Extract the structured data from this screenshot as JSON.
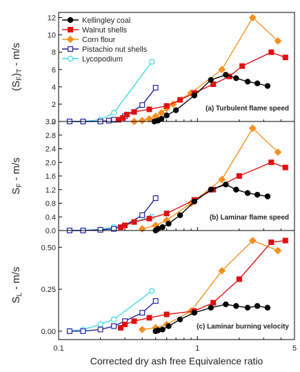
{
  "xlabel": "Corrected dry ash free Equivalence ratio",
  "x_ticks": [
    {
      "value": 0.1,
      "label": "0.1"
    },
    {
      "value": 1,
      "label": "1"
    },
    {
      "value": 5,
      "label": "5"
    }
  ],
  "series_styles": [
    {
      "name": "Kellingley coal",
      "color": "#000000",
      "marker": "circle",
      "filled": true
    },
    {
      "name": "Walnut shells",
      "color": "#e01010",
      "marker": "square",
      "filled": true
    },
    {
      "name": "Corn flour",
      "color": "#f5901e",
      "marker": "diamond",
      "filled": true
    },
    {
      "name": "Pistachio nut shells",
      "color": "#1f1f9e",
      "marker": "square",
      "filled": false
    },
    {
      "name": "Lycopodium",
      "color": "#3fd6e8",
      "marker": "circle",
      "filled": false
    }
  ],
  "chart_data": [
    {
      "type": "line",
      "annotation": "(a) Turbulent flame speed",
      "ylabel_main": "(S",
      "ylabel_sub1": "F",
      "ylabel_mid": ")",
      "ylabel_sub2": "T",
      "ylabel_unit": " - m/s",
      "xscale": "log",
      "xlim": [
        0.1,
        5
      ],
      "ylim": [
        0,
        12.6
      ],
      "y_ticks": [
        {
          "value": 0,
          "label": "0"
        },
        {
          "value": 2,
          "label": "2"
        },
        {
          "value": 4,
          "label": "4"
        },
        {
          "value": 6,
          "label": "6"
        },
        {
          "value": 8,
          "label": "8"
        },
        {
          "value": 10,
          "label": "10"
        },
        {
          "value": 12,
          "label": "12"
        }
      ],
      "legend": "top-left",
      "series": [
        {
          "name": "Kellingley coal",
          "x": [
            0.49,
            0.52,
            0.55,
            0.6,
            0.7,
            0.95,
            1.25,
            1.6,
            1.9,
            2.3,
            2.7,
            3.2
          ],
          "y": [
            0,
            0.1,
            0.3,
            0.7,
            1.3,
            3.0,
            4.8,
            5.4,
            5.0,
            4.6,
            4.4,
            4.1
          ]
        },
        {
          "name": "Walnut shells",
          "x": [
            0.27,
            0.29,
            0.31,
            0.35,
            0.45,
            0.6,
            0.75,
            0.95,
            1.3,
            1.7,
            2.1,
            3.4,
            4.3
          ],
          "y": [
            0.2,
            0.4,
            0.8,
            1.1,
            1.4,
            1.8,
            2.5,
            3.3,
            4.3,
            5.2,
            6.4,
            8.0,
            7.4
          ]
        },
        {
          "name": "Corn flour",
          "x": [
            0.35,
            0.4,
            0.45,
            0.5,
            0.55,
            0.6,
            0.67,
            0.9,
            1.5,
            2.5,
            3.8
          ],
          "y": [
            0,
            0.1,
            0.3,
            0.6,
            1.0,
            1.5,
            2.0,
            3.3,
            6.0,
            12.0,
            9.3
          ]
        },
        {
          "name": "Pistachio nut shells",
          "x": [
            0.12,
            0.15,
            0.2,
            0.23,
            0.25,
            0.3,
            0.4,
            0.5
          ],
          "y": [
            0,
            0,
            0,
            0.1,
            0.2,
            0.6,
            1.9,
            3.9
          ]
        },
        {
          "name": "Lycopodium",
          "x": [
            0.12,
            0.15,
            0.2,
            0.25,
            0.47
          ],
          "y": [
            0,
            0,
            0.2,
            1.0,
            6.9
          ]
        }
      ]
    },
    {
      "type": "line",
      "annotation": "(b) Laminar flame speed",
      "ylabel_main": "S",
      "ylabel_sub1": "F",
      "ylabel_mid": "",
      "ylabel_sub2": "",
      "ylabel_unit": " - m/s",
      "xscale": "log",
      "xlim": [
        0.1,
        5
      ],
      "ylim": [
        0,
        3.2
      ],
      "y_ticks": [
        {
          "value": 0,
          "label": "0.0"
        },
        {
          "value": 0.4,
          "label": "0.4"
        },
        {
          "value": 0.8,
          "label": "0.8"
        },
        {
          "value": 1.2,
          "label": "1.2"
        },
        {
          "value": 1.6,
          "label": "1.6"
        },
        {
          "value": 2.0,
          "label": "2.0"
        },
        {
          "value": 2.4,
          "label": "2.4"
        },
        {
          "value": 2.8,
          "label": "2.8"
        },
        {
          "value": 3.2,
          "label": "3.2"
        }
      ],
      "series": [
        {
          "name": "Kellingley coal",
          "x": [
            0.5,
            0.52,
            0.56,
            0.62,
            0.75,
            0.95,
            1.25,
            1.6,
            1.9,
            2.3,
            2.7,
            3.2
          ],
          "y": [
            0,
            0.05,
            0.1,
            0.2,
            0.45,
            0.85,
            1.2,
            1.35,
            1.2,
            1.1,
            1.05,
            1.0
          ]
        },
        {
          "name": "Walnut shells",
          "x": [
            0.28,
            0.3,
            0.35,
            0.45,
            0.6,
            0.95,
            1.3,
            2.0,
            3.4,
            4.3
          ],
          "y": [
            0.1,
            0.15,
            0.25,
            0.35,
            0.5,
            0.9,
            1.2,
            1.6,
            2.0,
            1.85
          ]
        },
        {
          "name": "Corn flour",
          "x": [
            0.4,
            0.5,
            0.6,
            0.9,
            1.5,
            2.5,
            3.8
          ],
          "y": [
            0.05,
            0.15,
            0.3,
            0.8,
            1.5,
            3.0,
            2.3
          ]
        },
        {
          "name": "Pistachio nut shells",
          "x": [
            0.12,
            0.15,
            0.2,
            0.25,
            0.3,
            0.4,
            0.5
          ],
          "y": [
            0,
            0,
            0.02,
            0.05,
            0.15,
            0.45,
            0.95
          ]
        },
        {
          "name": "Lycopodium",
          "x": [
            0.12,
            0.15,
            0.2,
            0.25,
            0.47
          ],
          "y": [
            0,
            0,
            0.03,
            0.1,
            0.4
          ]
        }
      ]
    },
    {
      "type": "line",
      "annotation": "(c) Laminar burning velocity",
      "ylabel_main": "S",
      "ylabel_sub1": "L",
      "ylabel_mid": "",
      "ylabel_sub2": "",
      "ylabel_unit": " - m/s",
      "xscale": "log",
      "xlim": [
        0.1,
        5
      ],
      "ylim": [
        -0.05,
        0.6
      ],
      "y_ticks": [
        {
          "value": 0,
          "label": "0.00"
        },
        {
          "value": 0.25,
          "label": "0.25"
        },
        {
          "value": 0.5,
          "label": "0.50"
        }
      ],
      "series": [
        {
          "name": "Kellingley coal",
          "x": [
            0.5,
            0.52,
            0.56,
            0.62,
            0.75,
            0.95,
            1.25,
            1.6,
            1.9,
            2.3,
            2.7,
            3.2
          ],
          "y": [
            0,
            0.005,
            0.01,
            0.03,
            0.07,
            0.11,
            0.14,
            0.16,
            0.15,
            0.14,
            0.15,
            0.14
          ]
        },
        {
          "name": "Walnut shells",
          "x": [
            0.28,
            0.3,
            0.35,
            0.45,
            0.6,
            0.95,
            1.3,
            2.0,
            3.4,
            4.3
          ],
          "y": [
            0.02,
            0.04,
            0.06,
            0.08,
            0.1,
            0.12,
            0.17,
            0.31,
            0.53,
            0.54
          ]
        },
        {
          "name": "Corn flour",
          "x": [
            0.4,
            0.5,
            0.6,
            0.9,
            1.5,
            2.5,
            3.8
          ],
          "y": [
            0.01,
            0.02,
            0.04,
            0.12,
            0.36,
            0.54,
            0.48
          ]
        },
        {
          "name": "Pistachio nut shells",
          "x": [
            0.12,
            0.15,
            0.2,
            0.25,
            0.3,
            0.4,
            0.5
          ],
          "y": [
            0,
            0,
            0.01,
            0.03,
            0.06,
            0.11,
            0.18
          ]
        },
        {
          "name": "Lycopodium",
          "x": [
            0.12,
            0.15,
            0.2,
            0.25,
            0.47
          ],
          "y": [
            0,
            0.01,
            0.04,
            0.07,
            0.24
          ]
        }
      ]
    }
  ]
}
